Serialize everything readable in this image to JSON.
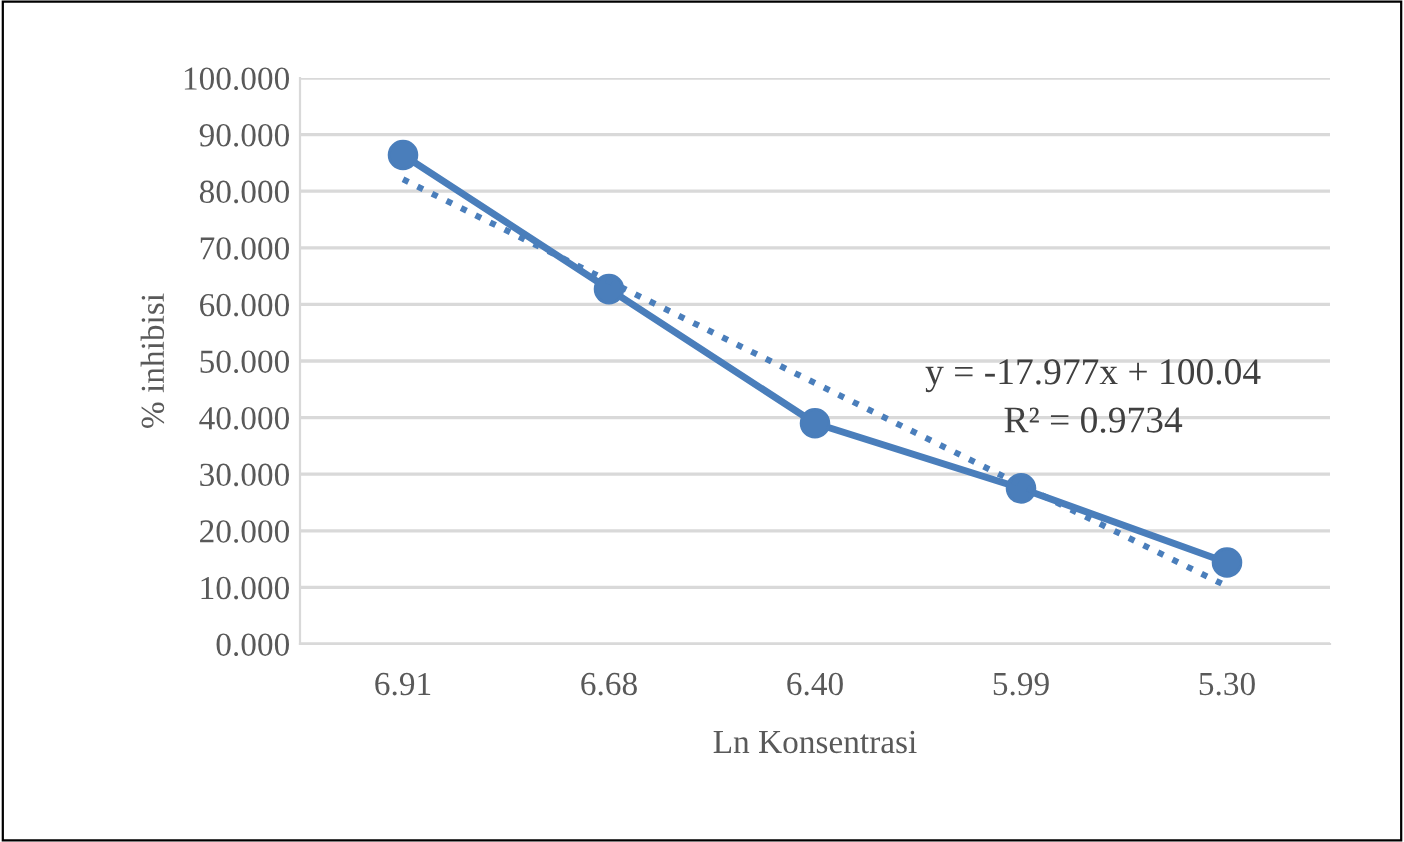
{
  "chart_data": {
    "type": "line",
    "xlabel": "Ln Konsentrasi",
    "ylabel": "% inhibisi",
    "categories": [
      "6.91",
      "6.68",
      "6.40",
      "5.99",
      "5.30"
    ],
    "series": [
      {
        "color": "#4a7ebb",
        "values": [
          86.4,
          62.7,
          39.0,
          27.5,
          14.4
        ],
        "marker": "circle",
        "line_style": "solid"
      },
      {
        "color": "#4a7ebb",
        "values": [
          82.1,
          64.1,
          46.1,
          28.1,
          10.2
        ],
        "marker": "none",
        "line_style": "dotted"
      }
    ],
    "ylim": [
      0,
      100
    ],
    "yticks": [
      {
        "value": 0,
        "label": "0.000"
      },
      {
        "value": 10,
        "label": "10.000"
      },
      {
        "value": 20,
        "label": "20.000"
      },
      {
        "value": 30,
        "label": "30.000"
      },
      {
        "value": 40,
        "label": "40.000"
      },
      {
        "value": 50,
        "label": "50.000"
      },
      {
        "value": 60,
        "label": "60.000"
      },
      {
        "value": 70,
        "label": "70.000"
      },
      {
        "value": 80,
        "label": "80.000"
      },
      {
        "value": 90,
        "label": "90.000"
      },
      {
        "value": 100,
        "label": "100.000"
      }
    ],
    "grid": "y",
    "annotations": [
      "y = -17.977x + 100.04",
      "R² = 0.9734"
    ]
  }
}
